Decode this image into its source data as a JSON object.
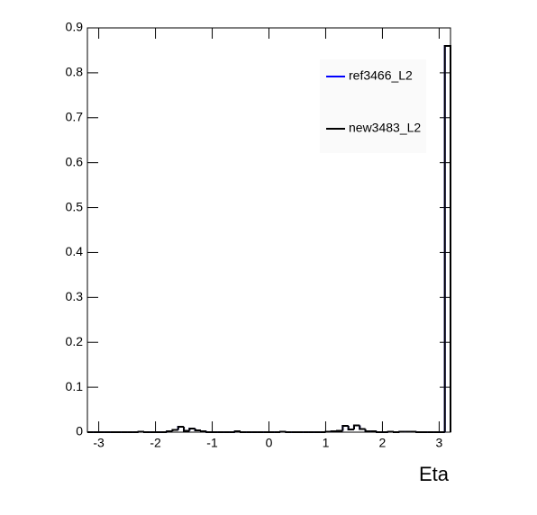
{
  "chart_data": {
    "type": "histogram",
    "x_label": "Eta",
    "bins": [
      -3.2,
      -3.1,
      -3.0,
      -2.9,
      -2.8,
      -2.7,
      -2.6,
      -2.5,
      -2.4,
      -2.3,
      -2.2,
      -2.1,
      -2.0,
      -1.9,
      -1.8,
      -1.7,
      -1.6,
      -1.5,
      -1.4,
      -1.3,
      -1.2,
      -1.1,
      -1.0,
      -0.9,
      -0.8,
      -0.7,
      -0.6,
      -0.5,
      -0.4,
      -0.3,
      -0.2,
      -0.1,
      0.0,
      0.1,
      0.2,
      0.3,
      0.4,
      0.5,
      0.6,
      0.7,
      0.8,
      0.9,
      1.0,
      1.1,
      1.2,
      1.3,
      1.4,
      1.5,
      1.6,
      1.7,
      1.8,
      1.9,
      2.0,
      2.1,
      2.2,
      2.3,
      2.4,
      2.5,
      2.6,
      2.7,
      2.8,
      2.9,
      3.0,
      3.1,
      3.2
    ],
    "series": [
      {
        "name": "ref3466_L2",
        "color": "#0000ff",
        "values": [
          0,
          0,
          0,
          0,
          0,
          0,
          0,
          0,
          0,
          0.001,
          0,
          0,
          0,
          0,
          0.002,
          0.005,
          0.012,
          0.003,
          0.008,
          0.004,
          0.002,
          0,
          0,
          0,
          0,
          0,
          0.002,
          0,
          0,
          0,
          0,
          0,
          0,
          0,
          0.001,
          0,
          0,
          0,
          0,
          0,
          0,
          0,
          0.001,
          0.002,
          0.003,
          0.014,
          0.006,
          0.015,
          0.007,
          0.002,
          0.002,
          0,
          0,
          0.001,
          0,
          0.001,
          0.001,
          0.001,
          0,
          0,
          0,
          0,
          0,
          0.86
        ]
      },
      {
        "name": "new3483_L2",
        "color": "#000000",
        "values": [
          0,
          0,
          0,
          0,
          0,
          0,
          0,
          0,
          0,
          0.001,
          0,
          0,
          0,
          0,
          0.002,
          0.005,
          0.012,
          0.003,
          0.008,
          0.004,
          0.002,
          0,
          0,
          0,
          0,
          0,
          0.002,
          0,
          0,
          0,
          0,
          0,
          0,
          0,
          0.001,
          0,
          0,
          0,
          0,
          0,
          0,
          0,
          0.001,
          0.002,
          0.003,
          0.014,
          0.006,
          0.015,
          0.007,
          0.002,
          0.002,
          0,
          0,
          0.001,
          0,
          0.001,
          0.001,
          0.001,
          0,
          0,
          0,
          0,
          0,
          0.86
        ]
      }
    ],
    "xlim": [
      -3.2,
      3.2
    ],
    "ylim": [
      0,
      0.9
    ],
    "xticks": [
      -3,
      -2,
      -1,
      0,
      1,
      2,
      3
    ],
    "yticks": [
      0,
      0.1,
      0.2,
      0.3,
      0.4,
      0.5,
      0.6,
      0.7,
      0.8,
      0.9
    ],
    "legend": "top-right"
  }
}
